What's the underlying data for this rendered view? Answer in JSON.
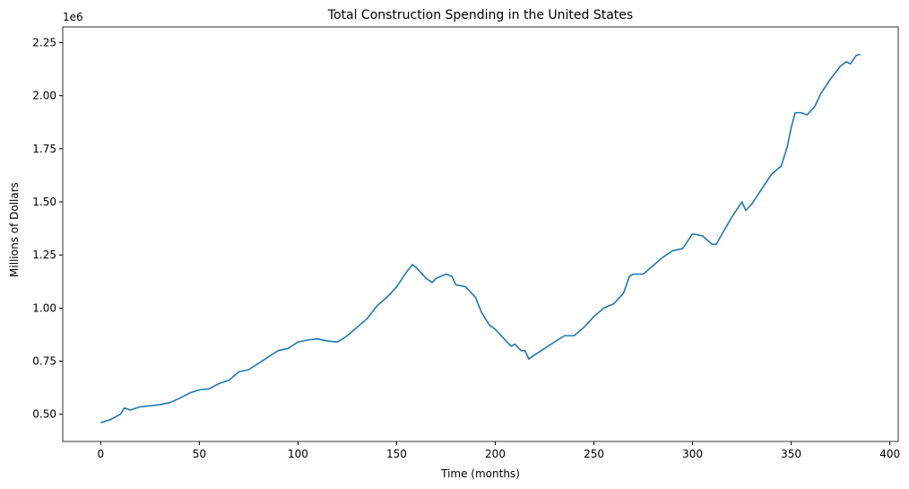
{
  "chart_data": {
    "type": "line",
    "title": "Total Construction Spending in the United States",
    "x_label": "Time (months)",
    "y_label": "Millions of Dollars",
    "y_offset_label": "1e6",
    "x": [
      0,
      5,
      10,
      12,
      15,
      20,
      25,
      30,
      35,
      40,
      45,
      50,
      55,
      60,
      65,
      70,
      75,
      80,
      85,
      90,
      95,
      100,
      105,
      110,
      115,
      120,
      125,
      130,
      135,
      140,
      145,
      150,
      155,
      158,
      160,
      165,
      168,
      170,
      175,
      178,
      180,
      185,
      190,
      193,
      197,
      200,
      205,
      208,
      210,
      213,
      215,
      217,
      220,
      225,
      230,
      235,
      240,
      245,
      250,
      255,
      260,
      265,
      268,
      270,
      275,
      280,
      285,
      290,
      295,
      300,
      305,
      310,
      312,
      315,
      320,
      325,
      327,
      330,
      335,
      340,
      345,
      348,
      350,
      352,
      355,
      358,
      362,
      365,
      370,
      375,
      378,
      380,
      383,
      385
    ],
    "series": [
      {
        "name": "Total Construction Spending",
        "color": "#1f77b4",
        "values": [
          0.46,
          0.475,
          0.5,
          0.53,
          0.52,
          0.535,
          0.54,
          0.545,
          0.555,
          0.575,
          0.6,
          0.615,
          0.62,
          0.645,
          0.66,
          0.7,
          0.71,
          0.74,
          0.77,
          0.8,
          0.81,
          0.84,
          0.85,
          0.855,
          0.845,
          0.84,
          0.87,
          0.91,
          0.95,
          1.01,
          1.05,
          1.1,
          1.17,
          1.205,
          1.19,
          1.14,
          1.12,
          1.14,
          1.16,
          1.15,
          1.11,
          1.1,
          1.05,
          0.98,
          0.92,
          0.9,
          0.85,
          0.82,
          0.83,
          0.8,
          0.8,
          0.76,
          0.78,
          0.81,
          0.84,
          0.87,
          0.87,
          0.91,
          0.96,
          1.0,
          1.02,
          1.07,
          1.15,
          1.16,
          1.16,
          1.2,
          1.24,
          1.27,
          1.28,
          1.35,
          1.34,
          1.3,
          1.3,
          1.35,
          1.43,
          1.5,
          1.46,
          1.49,
          1.56,
          1.63,
          1.67,
          1.76,
          1.85,
          1.92,
          1.92,
          1.91,
          1.95,
          2.01,
          2.08,
          2.14,
          2.16,
          2.15,
          2.19,
          2.195
        ]
      }
    ],
    "xlim": [
      -19.25,
      404.25
    ],
    "ylim": [
      0.372,
      2.324
    ],
    "xticks": [
      0,
      50,
      100,
      150,
      200,
      250,
      300,
      350,
      400
    ],
    "yticks": [
      {
        "value": 0.5,
        "label": "0.50"
      },
      {
        "value": 0.75,
        "label": "0.75"
      },
      {
        "value": 1.0,
        "label": "1.00"
      },
      {
        "value": 1.25,
        "label": "1.25"
      },
      {
        "value": 1.5,
        "label": "1.50"
      },
      {
        "value": 1.75,
        "label": "1.75"
      },
      {
        "value": 2.0,
        "label": "2.00"
      },
      {
        "value": 2.25,
        "label": "2.25"
      }
    ],
    "grid": false
  }
}
